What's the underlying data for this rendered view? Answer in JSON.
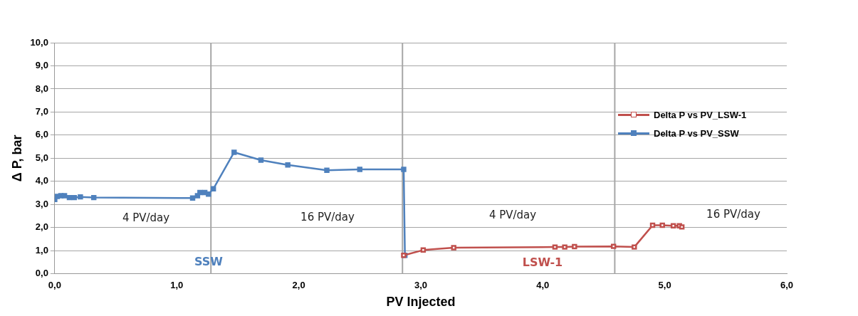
{
  "chart_data": {
    "type": "line",
    "xlabel": "PV Injected",
    "ylabel": "Δ P, bar",
    "xlim": [
      0,
      6
    ],
    "xticks": [
      {
        "value": 0,
        "label": "0,0"
      },
      {
        "value": 1,
        "label": "1,0"
      },
      {
        "value": 2,
        "label": "2,0"
      },
      {
        "value": 3,
        "label": "3,0"
      },
      {
        "value": 4,
        "label": "4,0"
      },
      {
        "value": 5,
        "label": "5,0"
      },
      {
        "value": 6,
        "label": "6,0"
      }
    ],
    "ylim": [
      0,
      10
    ],
    "yticks": [
      {
        "value": 0,
        "label": "0,0"
      },
      {
        "value": 1,
        "label": "1,0"
      },
      {
        "value": 2,
        "label": "2,0"
      },
      {
        "value": 3,
        "label": "3,0"
      },
      {
        "value": 4,
        "label": "4,0"
      },
      {
        "value": 5,
        "label": "5,0"
      },
      {
        "value": 6,
        "label": "6,0"
      },
      {
        "value": 7,
        "label": "7,0"
      },
      {
        "value": 8,
        "label": "8,0"
      },
      {
        "value": 9,
        "label": "9,0"
      },
      {
        "value": 10,
        "label": "10,0"
      }
    ],
    "grid": "y",
    "legend": "right",
    "marker": "square",
    "line_style": "solid",
    "series": [
      {
        "name": "Delta P vs PV_LSW-1",
        "color": "#c0504d",
        "x": [
          2.86,
          3.02,
          3.27,
          4.1,
          4.18,
          4.26,
          4.58,
          4.75,
          4.9,
          4.98,
          5.07,
          5.12,
          5.14
        ],
        "values": [
          0.8,
          1.03,
          1.13,
          1.16,
          1.16,
          1.18,
          1.19,
          1.16,
          2.1,
          2.1,
          2.08,
          2.08,
          2.03
        ]
      },
      {
        "name": "Delta P vs PV_SSW",
        "color": "#4f81bd",
        "x": [
          0,
          0.02,
          0.05,
          0.08,
          0.12,
          0.16,
          0.21,
          0.32,
          1.13,
          1.17,
          1.19,
          1.23,
          1.26,
          1.3,
          1.47,
          1.69,
          1.91,
          2.23,
          2.5,
          2.86,
          2.87
        ],
        "values": [
          3.22,
          3.35,
          3.38,
          3.38,
          3.3,
          3.3,
          3.33,
          3.3,
          3.28,
          3.38,
          3.52,
          3.52,
          3.45,
          3.68,
          5.26,
          4.92,
          4.71,
          4.48,
          4.52,
          4.52,
          0.8
        ]
      }
    ],
    "ref_lines": [
      {
        "axis": "x",
        "value": 1.28,
        "color": "#a6a6a6"
      },
      {
        "axis": "x",
        "value": 2.85,
        "color": "#a6a6a6"
      },
      {
        "axis": "x",
        "value": 4.59,
        "color": "#a6a6a6"
      }
    ],
    "annotations": [
      "4 PV/day",
      "16 PV/day",
      "4 PV/day",
      "16 PV/day",
      "SSW",
      "LSW-1"
    ]
  }
}
